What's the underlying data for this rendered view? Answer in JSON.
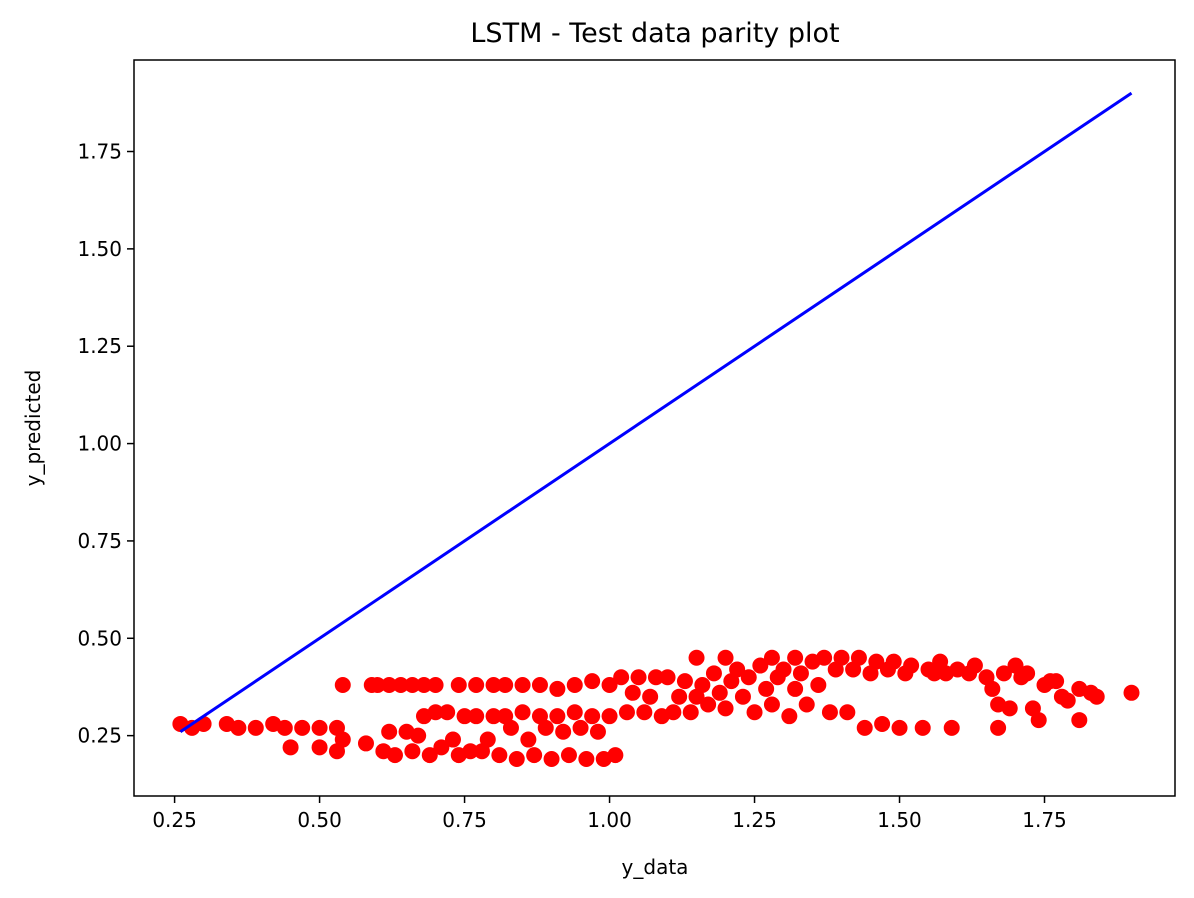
{
  "chart_data": {
    "type": "scatter",
    "title": "LSTM - Test data parity plot",
    "xlabel": "y_data",
    "ylabel": "y_predicted",
    "xlim": [
      0.18,
      1.975
    ],
    "ylim": [
      0.095,
      1.985
    ],
    "xticks": [
      0.25,
      0.5,
      0.75,
      1.0,
      1.25,
      1.5,
      1.75
    ],
    "xtick_labels": [
      "0.25",
      "0.50",
      "0.75",
      "1.00",
      "1.25",
      "1.50",
      "1.75"
    ],
    "yticks": [
      0.25,
      0.5,
      0.75,
      1.0,
      1.25,
      1.5,
      1.75
    ],
    "ytick_labels": [
      "0.25",
      "0.50",
      "0.75",
      "1.00",
      "1.25",
      "1.50",
      "1.75"
    ],
    "grid": false,
    "series": [
      {
        "kind": "scatter",
        "color": "#ff0000",
        "points": [
          [
            0.26,
            0.28
          ],
          [
            0.28,
            0.27
          ],
          [
            0.3,
            0.28
          ],
          [
            0.34,
            0.28
          ],
          [
            0.36,
            0.27
          ],
          [
            0.39,
            0.27
          ],
          [
            0.42,
            0.28
          ],
          [
            0.44,
            0.27
          ],
          [
            0.45,
            0.22
          ],
          [
            0.47,
            0.27
          ],
          [
            0.5,
            0.27
          ],
          [
            0.5,
            0.22
          ],
          [
            0.53,
            0.21
          ],
          [
            0.53,
            0.27
          ],
          [
            0.54,
            0.24
          ],
          [
            0.54,
            0.38
          ],
          [
            0.58,
            0.23
          ],
          [
            0.59,
            0.38
          ],
          [
            0.6,
            0.38
          ],
          [
            0.61,
            0.21
          ],
          [
            0.62,
            0.38
          ],
          [
            0.62,
            0.26
          ],
          [
            0.63,
            0.2
          ],
          [
            0.64,
            0.38
          ],
          [
            0.65,
            0.26
          ],
          [
            0.66,
            0.38
          ],
          [
            0.66,
            0.21
          ],
          [
            0.67,
            0.25
          ],
          [
            0.68,
            0.38
          ],
          [
            0.68,
            0.3
          ],
          [
            0.69,
            0.2
          ],
          [
            0.7,
            0.38
          ],
          [
            0.7,
            0.31
          ],
          [
            0.71,
            0.22
          ],
          [
            0.72,
            0.31
          ],
          [
            0.73,
            0.24
          ],
          [
            0.74,
            0.38
          ],
          [
            0.74,
            0.2
          ],
          [
            0.75,
            0.3
          ],
          [
            0.76,
            0.21
          ],
          [
            0.77,
            0.38
          ],
          [
            0.77,
            0.3
          ],
          [
            0.78,
            0.21
          ],
          [
            0.79,
            0.24
          ],
          [
            0.8,
            0.38
          ],
          [
            0.8,
            0.3
          ],
          [
            0.81,
            0.2
          ],
          [
            0.82,
            0.38
          ],
          [
            0.82,
            0.3
          ],
          [
            0.83,
            0.27
          ],
          [
            0.84,
            0.19
          ],
          [
            0.85,
            0.38
          ],
          [
            0.85,
            0.31
          ],
          [
            0.86,
            0.24
          ],
          [
            0.87,
            0.2
          ],
          [
            0.88,
            0.38
          ],
          [
            0.88,
            0.3
          ],
          [
            0.89,
            0.27
          ],
          [
            0.9,
            0.19
          ],
          [
            0.91,
            0.37
          ],
          [
            0.91,
            0.3
          ],
          [
            0.92,
            0.26
          ],
          [
            0.93,
            0.2
          ],
          [
            0.94,
            0.38
          ],
          [
            0.94,
            0.31
          ],
          [
            0.95,
            0.27
          ],
          [
            0.96,
            0.19
          ],
          [
            0.97,
            0.39
          ],
          [
            0.97,
            0.3
          ],
          [
            0.98,
            0.26
          ],
          [
            0.99,
            0.19
          ],
          [
            1.0,
            0.38
          ],
          [
            1.0,
            0.3
          ],
          [
            1.01,
            0.2
          ],
          [
            1.02,
            0.4
          ],
          [
            1.03,
            0.31
          ],
          [
            1.04,
            0.36
          ],
          [
            1.05,
            0.4
          ],
          [
            1.06,
            0.31
          ],
          [
            1.07,
            0.35
          ],
          [
            1.08,
            0.4
          ],
          [
            1.09,
            0.3
          ],
          [
            1.1,
            0.4
          ],
          [
            1.11,
            0.31
          ],
          [
            1.12,
            0.35
          ],
          [
            1.13,
            0.39
          ],
          [
            1.14,
            0.31
          ],
          [
            1.15,
            0.45
          ],
          [
            1.15,
            0.35
          ],
          [
            1.16,
            0.38
          ],
          [
            1.17,
            0.33
          ],
          [
            1.18,
            0.41
          ],
          [
            1.19,
            0.36
          ],
          [
            1.2,
            0.45
          ],
          [
            1.2,
            0.32
          ],
          [
            1.21,
            0.39
          ],
          [
            1.22,
            0.42
          ],
          [
            1.23,
            0.35
          ],
          [
            1.24,
            0.4
          ],
          [
            1.25,
            0.31
          ],
          [
            1.26,
            0.43
          ],
          [
            1.27,
            0.37
          ],
          [
            1.28,
            0.45
          ],
          [
            1.28,
            0.33
          ],
          [
            1.29,
            0.4
          ],
          [
            1.3,
            0.42
          ],
          [
            1.31,
            0.3
          ],
          [
            1.32,
            0.45
          ],
          [
            1.32,
            0.37
          ],
          [
            1.33,
            0.41
          ],
          [
            1.34,
            0.33
          ],
          [
            1.35,
            0.44
          ],
          [
            1.36,
            0.38
          ],
          [
            1.37,
            0.45
          ],
          [
            1.38,
            0.31
          ],
          [
            1.39,
            0.42
          ],
          [
            1.4,
            0.45
          ],
          [
            1.41,
            0.31
          ],
          [
            1.42,
            0.42
          ],
          [
            1.43,
            0.45
          ],
          [
            1.44,
            0.27
          ],
          [
            1.45,
            0.41
          ],
          [
            1.46,
            0.44
          ],
          [
            1.47,
            0.28
          ],
          [
            1.48,
            0.42
          ],
          [
            1.49,
            0.44
          ],
          [
            1.5,
            0.27
          ],
          [
            1.51,
            0.41
          ],
          [
            1.52,
            0.43
          ],
          [
            1.54,
            0.27
          ],
          [
            1.55,
            0.42
          ],
          [
            1.56,
            0.41
          ],
          [
            1.57,
            0.44
          ],
          [
            1.58,
            0.41
          ],
          [
            1.59,
            0.27
          ],
          [
            1.6,
            0.42
          ],
          [
            1.62,
            0.41
          ],
          [
            1.63,
            0.43
          ],
          [
            1.65,
            0.4
          ],
          [
            1.66,
            0.37
          ],
          [
            1.67,
            0.33
          ],
          [
            1.67,
            0.27
          ],
          [
            1.68,
            0.41
          ],
          [
            1.69,
            0.32
          ],
          [
            1.7,
            0.43
          ],
          [
            1.71,
            0.4
          ],
          [
            1.72,
            0.41
          ],
          [
            1.73,
            0.32
          ],
          [
            1.74,
            0.29
          ],
          [
            1.75,
            0.38
          ],
          [
            1.76,
            0.39
          ],
          [
            1.77,
            0.39
          ],
          [
            1.78,
            0.35
          ],
          [
            1.79,
            0.34
          ],
          [
            1.81,
            0.37
          ],
          [
            1.81,
            0.29
          ],
          [
            1.83,
            0.36
          ],
          [
            1.84,
            0.35
          ],
          [
            1.9,
            0.36
          ]
        ]
      },
      {
        "kind": "line",
        "color": "#0000ff",
        "points": [
          [
            0.26,
            0.26
          ],
          [
            1.9,
            1.9
          ]
        ]
      }
    ]
  }
}
